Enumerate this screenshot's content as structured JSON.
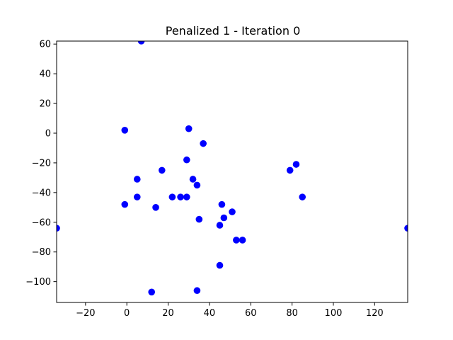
{
  "chart_data": {
    "type": "scatter",
    "title": "Penalized 1 - Iteration 0",
    "xlabel": "",
    "ylabel": "",
    "xlim": [
      -34,
      136
    ],
    "ylim": [
      -114,
      62
    ],
    "xticks": [
      -20,
      0,
      20,
      40,
      60,
      80,
      100,
      120
    ],
    "yticks": [
      -100,
      -80,
      -60,
      -40,
      -20,
      0,
      20,
      40,
      60
    ],
    "grid": false,
    "marker_color": "#0000ff",
    "series": [
      {
        "points": [
          [
            7,
            62
          ],
          [
            -1,
            2
          ],
          [
            30,
            3
          ],
          [
            37,
            -7
          ],
          [
            29,
            -18
          ],
          [
            17,
            -25
          ],
          [
            5,
            -31
          ],
          [
            32,
            -31
          ],
          [
            34,
            -35
          ],
          [
            5,
            -43
          ],
          [
            22,
            -43
          ],
          [
            26,
            -43
          ],
          [
            29,
            -43
          ],
          [
            -1,
            -48
          ],
          [
            14,
            -50
          ],
          [
            46,
            -48
          ],
          [
            51,
            -53
          ],
          [
            47,
            -57
          ],
          [
            35,
            -58
          ],
          [
            45,
            -62
          ],
          [
            53,
            -72
          ],
          [
            56,
            -72
          ],
          [
            45,
            -89
          ],
          [
            12,
            -107
          ],
          [
            34,
            -106
          ],
          [
            82,
            -21
          ],
          [
            79,
            -25
          ],
          [
            85,
            -43
          ],
          [
            -34,
            -64
          ],
          [
            136,
            -64
          ]
        ]
      }
    ]
  }
}
